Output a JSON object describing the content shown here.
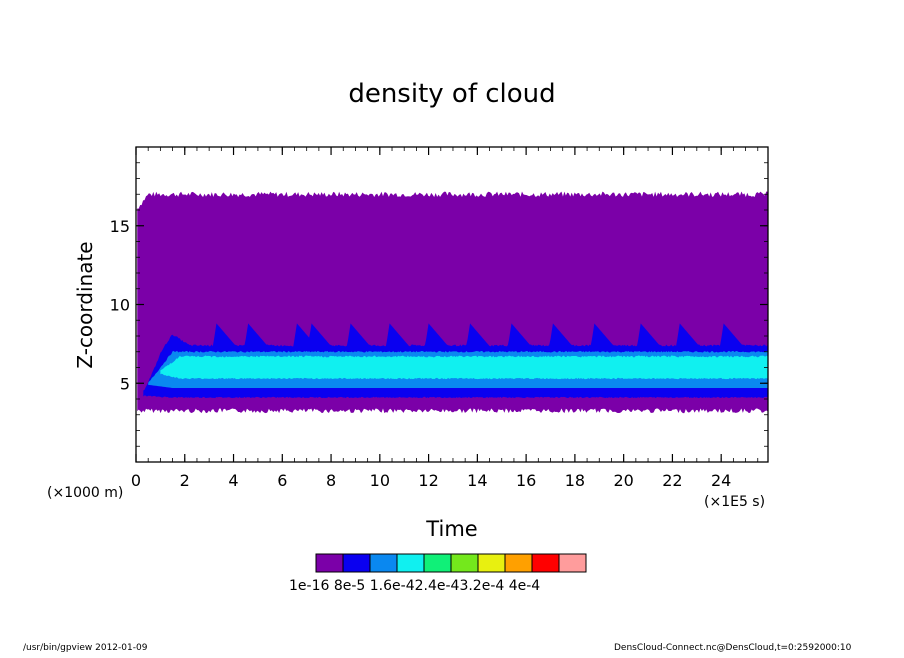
{
  "chart_data": {
    "type": "heatmap",
    "title": "density of cloud",
    "xlabel": "Time",
    "ylabel": "Z-coordinate",
    "x_unit": "(×1E5 s)",
    "y_unit": "(×1000 m)",
    "xlim": [
      0,
      25.92
    ],
    "ylim": [
      0,
      20
    ],
    "x_ticks": [
      0,
      2,
      4,
      6,
      8,
      10,
      12,
      14,
      16,
      18,
      20,
      22,
      24
    ],
    "y_ticks": [
      5,
      10,
      15
    ],
    "levels": [
      {
        "label": "1e-16",
        "color": "#7b00a8"
      },
      {
        "label": "8e-5",
        "color": "#0a00f0"
      },
      {
        "label": "1.6e-4",
        "color": "#0a88f0"
      },
      {
        "label": "2.4e-4",
        "color": "#10f0f0"
      },
      {
        "label": "3.2e-4",
        "color": "#10f078"
      },
      {
        "label": "4e-4",
        "color": "#74e81c"
      },
      {
        "label": "",
        "color": "#e8f010"
      },
      {
        "label": "",
        "color": "#ffa000"
      },
      {
        "label": "",
        "color": "#ff0000"
      },
      {
        "label": "",
        "color": "#ff9c9c"
      }
    ],
    "legend_text": "1e-16 8e-5 1.6e-42.4e-43.2e-4 4e-4",
    "regions": {
      "cloud_base": 3.2,
      "cloud_top": 17.0,
      "band_blue": [
        4.2,
        7.4
      ],
      "band_lightblue": [
        4.7,
        7.0
      ],
      "band_cyan": [
        5.3,
        6.7
      ],
      "spike_times": [
        3.3,
        4.6,
        6.6,
        7.2,
        8.8,
        10.4,
        12.0,
        13.7,
        15.4,
        17.1,
        18.8,
        20.7,
        22.3,
        24.1
      ],
      "spike_top": 8.8
    }
  },
  "footer": {
    "left": "/usr/bin/gpview   2012-01-09",
    "right": "DensCloud-Connect.nc@DensCloud,t=0:2592000:10"
  }
}
